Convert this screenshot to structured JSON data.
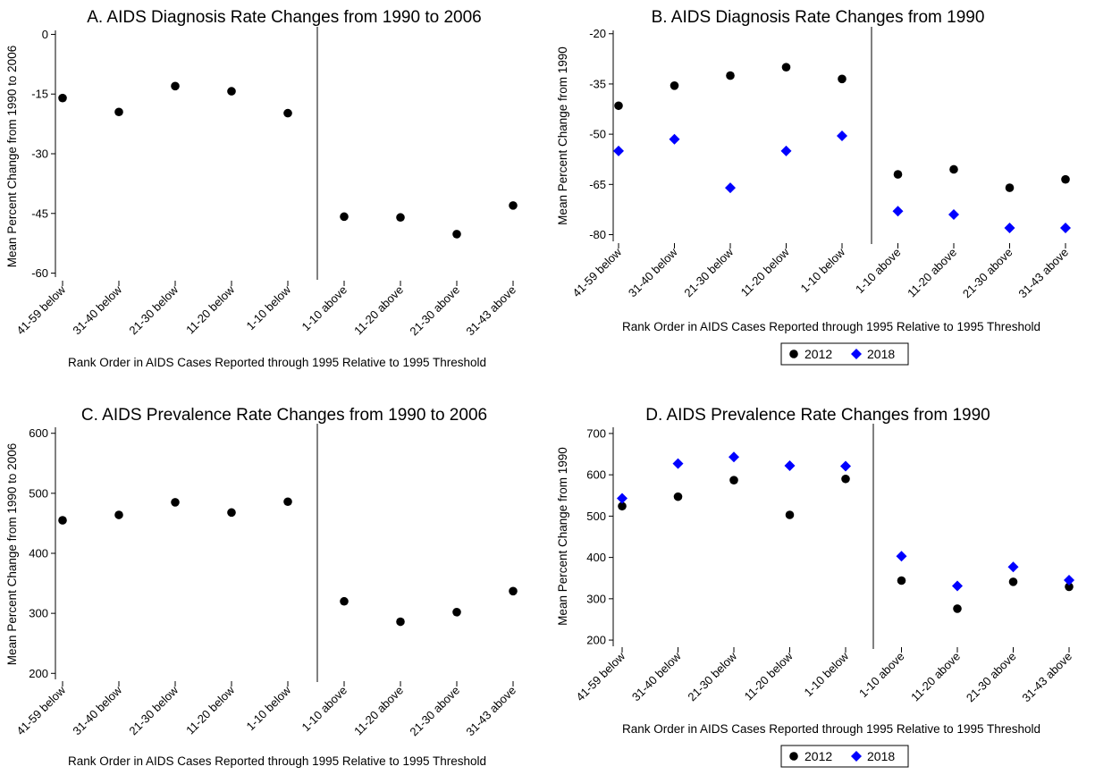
{
  "chart_data": [
    {
      "panel": "A",
      "type": "scatter",
      "title": "A. AIDS Diagnosis Rate Changes from 1990 to 2006",
      "xlabel": "Rank Order in AIDS Cases Reported through 1995 Relative to 1995 Threshold",
      "ylabel": "Mean Percent Change from 1990 to 2006",
      "categories": [
        "41-59 below",
        "31-40 below",
        "21-30 below",
        "11-20 below",
        "1-10 below",
        "1-10 above",
        "11-20 above",
        "21-30 above",
        "31-43 above"
      ],
      "yticks": [
        0,
        -15,
        -30,
        -45,
        -60
      ],
      "ylim": [
        -61,
        1
      ],
      "threshold_between": [
        "1-10 below",
        "1-10 above"
      ],
      "series": [
        {
          "values": [
            -16,
            -19.5,
            -13,
            -14.3,
            -19.8,
            -45.8,
            -46,
            -50.2,
            -43
          ],
          "color": "#000000",
          "marker": "circle"
        }
      ],
      "legend": []
    },
    {
      "panel": "B",
      "type": "scatter",
      "title": "B. AIDS Diagnosis Rate Changes from 1990",
      "xlabel": "Rank Order in AIDS Cases Reported through 1995 Relative to 1995 Threshold",
      "ylabel": "Mean Percent Change from 1990",
      "categories": [
        "41-59 below",
        "31-40 below",
        "21-30 below",
        "11-20 below",
        "1-10 below",
        "1-10 above",
        "11-20 above",
        "21-30 above",
        "31-43 above"
      ],
      "yticks": [
        -20,
        -35,
        -50,
        -65,
        -80
      ],
      "ylim": [
        -82,
        -19
      ],
      "threshold_between": [
        "1-10 below",
        "1-10 above"
      ],
      "series": [
        {
          "name": "2012",
          "values": [
            -41.5,
            -35.5,
            -32.5,
            -30,
            -33.5,
            -62,
            -60.5,
            -66,
            -63.5
          ],
          "color": "#000000",
          "marker": "circle"
        },
        {
          "name": "2018",
          "values": [
            -55,
            -51.5,
            -66,
            -55,
            -50.5,
            -73,
            -74,
            -78,
            -78
          ],
          "color": "#0000ff",
          "marker": "diamond"
        }
      ],
      "legend": [
        {
          "label": "2012",
          "color": "#000000",
          "marker": "circle"
        },
        {
          "label": "2018",
          "color": "#0000ff",
          "marker": "diamond"
        }
      ],
      "legend_position": "bottom"
    },
    {
      "panel": "C",
      "type": "scatter",
      "title": "C. AIDS Prevalence Rate Changes from 1990 to 2006",
      "xlabel": "Rank Order in AIDS Cases Reported through 1995 Relative to 1995 Threshold",
      "ylabel": "Mean Percent Change from 1990 to 2006",
      "categories": [
        "41-59 below",
        "31-40 below",
        "21-30 below",
        "11-20 below",
        "1-10 below",
        "1-10 above",
        "11-20 above",
        "21-30 above",
        "31-43 above"
      ],
      "yticks": [
        200,
        300,
        400,
        500,
        600
      ],
      "ylim": [
        190,
        610
      ],
      "threshold_between": [
        "1-10 below",
        "1-10 above"
      ],
      "series": [
        {
          "values": [
            455,
            464,
            485,
            468,
            486,
            320,
            286,
            302,
            337
          ],
          "color": "#000000",
          "marker": "circle"
        }
      ],
      "legend": []
    },
    {
      "panel": "D",
      "type": "scatter",
      "title": "D. AIDS Prevalence Rate Changes from 1990",
      "xlabel": "Rank Order in AIDS Cases Reported through 1995 Relative to 1995 Threshold",
      "ylabel": "Mean Percent Change from 1990",
      "categories": [
        "41-59 below",
        "31-40 below",
        "21-30 below",
        "11-20 below",
        "1-10 below",
        "1-10 above",
        "11-20 above",
        "21-30 above",
        "31-43 above"
      ],
      "yticks": [
        200,
        300,
        400,
        500,
        600,
        700
      ],
      "ylim": [
        185,
        715
      ],
      "threshold_between": [
        "1-10 below",
        "1-10 above"
      ],
      "series": [
        {
          "name": "2012",
          "values": [
            524,
            547,
            587,
            503,
            590,
            344,
            276,
            341,
            329
          ],
          "color": "#000000",
          "marker": "circle"
        },
        {
          "name": "2018",
          "values": [
            543,
            627,
            643,
            622,
            621,
            403,
            331,
            377,
            345
          ],
          "color": "#0000ff",
          "marker": "diamond"
        }
      ],
      "legend": [
        {
          "label": "2012",
          "color": "#000000",
          "marker": "circle"
        },
        {
          "label": "2018",
          "color": "#0000ff",
          "marker": "diamond"
        }
      ],
      "legend_position": "bottom"
    }
  ]
}
